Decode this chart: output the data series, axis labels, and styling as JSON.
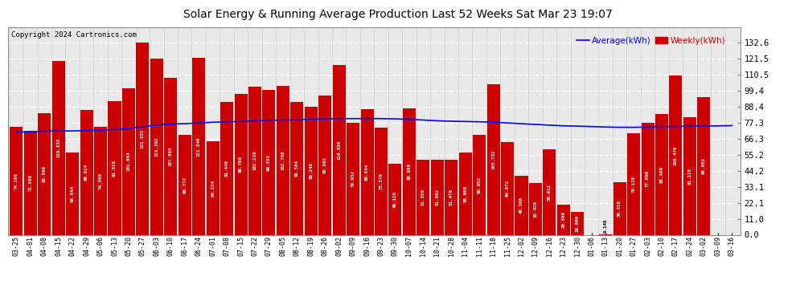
{
  "title": "Solar Energy & Running Average Production Last 52 Weeks Sat Mar 23 19:07",
  "copyright": "Copyright 2024 Cartronics.com",
  "legend_avg": "Average(kWh)",
  "legend_weekly": "Weekly(kWh)",
  "background_color": "#ffffff",
  "plot_bg_color": "#e8e8e8",
  "bar_color": "#cc0000",
  "avg_line_color": "#0000ff",
  "ylim": [
    0.0,
    143.0
  ],
  "yticks": [
    0.0,
    11.0,
    22.1,
    33.1,
    44.2,
    55.2,
    66.3,
    77.3,
    88.4,
    99.4,
    110.5,
    121.5,
    132.6
  ],
  "categories": [
    "03-25",
    "04-01",
    "04-08",
    "04-15",
    "04-22",
    "04-29",
    "05-06",
    "05-13",
    "05-20",
    "05-27",
    "06-03",
    "06-10",
    "06-17",
    "06-24",
    "07-01",
    "07-08",
    "07-15",
    "07-22",
    "07-29",
    "08-05",
    "08-12",
    "08-19",
    "08-26",
    "09-02",
    "09-09",
    "09-16",
    "09-23",
    "09-30",
    "10-07",
    "10-14",
    "10-21",
    "10-28",
    "11-04",
    "11-11",
    "11-18",
    "11-25",
    "12-02",
    "12-09",
    "12-16",
    "12-23",
    "12-30",
    "01-06",
    "01-13",
    "01-20",
    "01-27",
    "02-03",
    "02-10",
    "02-17",
    "02-24",
    "03-02",
    "03-09",
    "03-16"
  ],
  "weekly_values": [
    74.1,
    71.5,
    83.596,
    119.832,
    56.844,
    86.024,
    74.568,
    91.816,
    101.064,
    132.552,
    121.392,
    107.884,
    68.772,
    121.84,
    64.224,
    91.448,
    96.76,
    102.216,
    99.552,
    102.768,
    91.584,
    88.24,
    95.892,
    116.856,
    76.932,
    86.544,
    73.576,
    49.128,
    86.868,
    51.556,
    51.692,
    51.476,
    56.608,
    68.952,
    103.732,
    64.072,
    40.368,
    35.42,
    58.912,
    20.5,
    16.0,
    0.0,
    0.148,
    36.316,
    70.116,
    77.096,
    83.36,
    109.476,
    81.228,
    95.052,
    0.0,
    0.0
  ],
  "avg_values": [
    70.5,
    71.0,
    71.3,
    71.5,
    71.5,
    71.8,
    72.0,
    72.5,
    73.0,
    74.5,
    75.5,
    76.3,
    76.5,
    77.0,
    77.5,
    77.8,
    78.0,
    78.5,
    78.8,
    79.0,
    79.2,
    79.5,
    79.8,
    80.0,
    80.0,
    80.0,
    80.0,
    79.8,
    79.5,
    79.0,
    78.5,
    78.2,
    78.0,
    77.8,
    77.5,
    77.0,
    76.5,
    76.0,
    75.5,
    75.0,
    74.8,
    74.5,
    74.2,
    74.0,
    74.0,
    74.2,
    74.5,
    74.5,
    74.8,
    74.8,
    75.0,
    75.2
  ]
}
